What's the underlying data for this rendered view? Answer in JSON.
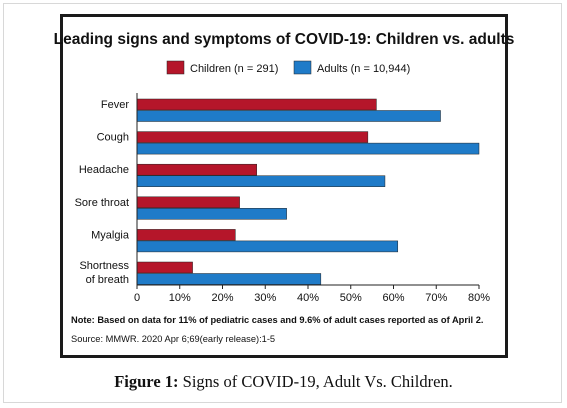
{
  "figure_caption": {
    "label": "Figure 1:",
    "text": "Signs of COVID-19, Adult Vs. Children."
  },
  "chart_data": {
    "type": "bar",
    "orientation": "horizontal",
    "title": "Leading signs and symptoms of COVID-19: Children vs. adults",
    "categories": [
      "Fever",
      "Cough",
      "Headache",
      "Sore throat",
      "Myalgia",
      "Shortness of breath"
    ],
    "series": [
      {
        "name": "Children (n = 291)",
        "color": "#b5162a",
        "values": [
          56,
          54,
          28,
          24,
          23,
          13
        ]
      },
      {
        "name": "Adults (n = 10,944)",
        "color": "#1f7bc8",
        "values": [
          71,
          80,
          58,
          35,
          61,
          43
        ]
      }
    ],
    "xticks": [
      "0",
      "10%",
      "20%",
      "30%",
      "40%",
      "50%",
      "60%",
      "70%",
      "80%"
    ],
    "xlim": [
      0,
      80
    ],
    "grid": false,
    "legend_position": "top",
    "note": "Note: Based on data for 11% of pediatric cases and 9.6% of adult cases reported as of April 2.",
    "source": "Source: MMWR. 2020 Apr 6;69(early release):1-5"
  }
}
